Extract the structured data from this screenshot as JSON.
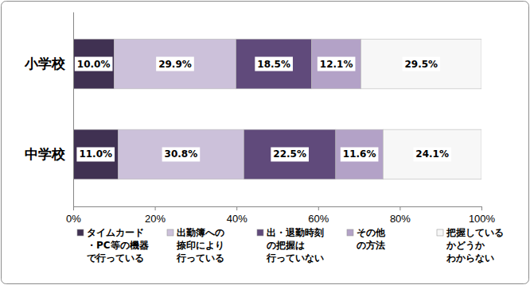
{
  "chart_data": {
    "type": "bar",
    "orientation": "horizontal",
    "stacked": true,
    "data_labels": true,
    "legend": "bottom",
    "grid": false,
    "categories": [
      "小学校",
      "中学校"
    ],
    "xlim": [
      0,
      100
    ],
    "xticks": [
      {
        "value": 0,
        "label": "0%"
      },
      {
        "value": 20,
        "label": "20%"
      },
      {
        "value": 40,
        "label": "40%"
      },
      {
        "value": 60,
        "label": "60%"
      },
      {
        "value": 80,
        "label": "80%"
      },
      {
        "value": 100,
        "label": "100%"
      }
    ],
    "series": [
      {
        "name": "タイムカード\n・PC等の機器\nで行っている",
        "color": "#403152",
        "values": [
          10.0,
          11.0
        ],
        "value_labels": [
          "10.0%",
          "11.0%"
        ]
      },
      {
        "name": "出勤簿への\n捺印により\n行っている",
        "color": "#ccc1da",
        "values": [
          29.9,
          30.8
        ],
        "value_labels": [
          "29.9%",
          "30.8%"
        ]
      },
      {
        "name": "出・退勤時刻\nの把握は\n行っていない",
        "color": "#604a7b",
        "values": [
          18.5,
          22.5
        ],
        "value_labels": [
          "18.5%",
          "22.5%"
        ]
      },
      {
        "name": "その他\nの方法",
        "color": "#b3a2c7",
        "values": [
          12.1,
          11.6
        ],
        "value_labels": [
          "12.1%",
          "11.6%"
        ]
      },
      {
        "name": "把握している\nかどうか\nわからない",
        "color": "#f7f7f7",
        "values": [
          29.5,
          24.1
        ],
        "value_labels": [
          "29.5%",
          "24.1%"
        ]
      }
    ]
  }
}
